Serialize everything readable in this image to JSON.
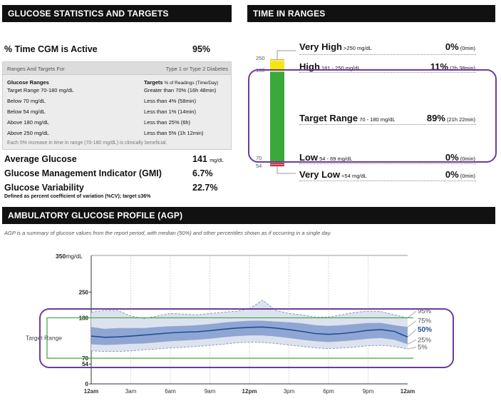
{
  "headers": {
    "stats": "GLUCOSE STATISTICS AND TARGETS",
    "tir": "TIME IN RANGES",
    "agp": "AMBULATORY GLUCOSE PROFILE (AGP)"
  },
  "stats": {
    "cgm_active_label": "% Time CGM is Active",
    "cgm_active_value": "95%",
    "targets_head_left": "Ranges And Targets For",
    "targets_head_right": "Type 1 or Type 2 Diabetes",
    "col_ranges_header": "Glucose Ranges",
    "col_targets_header_bold": "Targets",
    "col_targets_header_rest": " % of Readings (Time/Day)",
    "rows": [
      {
        "range": "Target Range 70-180 mg/dL",
        "target": "Greater than 70% (16h 48min)"
      },
      {
        "range": "Below 70 mg/dL",
        "target": "Less than 4% (58min)"
      },
      {
        "range": "Below 54 mg/dL",
        "target": "Less than 1% (14min)"
      },
      {
        "range": "Above 180 mg/dL",
        "target": "Less than 25% (6h)"
      },
      {
        "range": "Above 250 mg/dL",
        "target": "Less than 5% (1h 12min)"
      }
    ],
    "footnote": "Each 5% increase in time in range (70-180 mg/dL) is clinically beneficial.",
    "avg_glucose_label": "Average Glucose",
    "avg_glucose_value": "141",
    "avg_glucose_unit": "mg/dL",
    "gmi_label": "Glucose Management Indicator (GMI)",
    "gmi_value": "6.7%",
    "variability_label": "Glucose Variability",
    "variability_value": "22.7%",
    "variability_note": "Defined as percent coefficient of variation (%CV); target ≤36%"
  },
  "tir": {
    "axis_labels": [
      "250",
      "180",
      "70",
      "54"
    ],
    "rows": [
      {
        "label": "Very High",
        "range": ">250 mg/dL",
        "pct": "0%",
        "time": "(0min)"
      },
      {
        "label": "High",
        "range": "181 - 250 mg/dL",
        "pct": "11%",
        "time": "(2h 38min)"
      },
      {
        "label": "Target Range",
        "range": "70 - 180 mg/dL",
        "pct": "89%",
        "time": "(21h 22min)"
      },
      {
        "label": "Low",
        "range": "54 - 69 mg/dL",
        "pct": "0%",
        "time": "(0min)"
      },
      {
        "label": "Very Low",
        "range": "<54 mg/dL",
        "pct": "0%",
        "time": "(0min)"
      }
    ],
    "colors": {
      "very_high": "#f5a623",
      "high": "#f6e60a",
      "target": "#3aa83a",
      "low": "#d0021b",
      "very_low": "#8b0000"
    }
  },
  "agp": {
    "description": "AGP is a summary of glucose values from the report period, with median (50%) and other percentiles shown as if occurring in a single day.",
    "target_range_label": "Target Range",
    "y_unit_label": "mg/dL"
  },
  "chart_data": {
    "type": "area",
    "x_tick_labels": [
      "12am",
      "3am",
      "6am",
      "9am",
      "12pm",
      "3pm",
      "6pm",
      "9pm",
      "12am"
    ],
    "x": [
      0,
      1,
      2,
      3,
      4,
      5,
      6,
      7,
      8,
      9,
      10,
      11,
      12,
      13,
      14,
      15,
      16,
      17,
      18,
      19,
      20,
      21,
      22,
      23,
      24
    ],
    "xlim": [
      0,
      24
    ],
    "ylim": [
      0,
      350
    ],
    "y_ticks": [
      0,
      54,
      70,
      180,
      250,
      350
    ],
    "target_lines": [
      70,
      180
    ],
    "series": [
      {
        "name": "95%",
        "values": [
          195,
          200,
          200,
          185,
          178,
          185,
          192,
          190,
          188,
          192,
          195,
          198,
          205,
          228,
          200,
          192,
          188,
          182,
          182,
          188,
          195,
          198,
          197,
          188,
          180
        ]
      },
      {
        "name": "75%",
        "values": [
          155,
          150,
          152,
          152,
          152,
          155,
          157,
          158,
          160,
          163,
          167,
          170,
          172,
          172,
          170,
          168,
          165,
          160,
          158,
          160,
          163,
          166,
          166,
          160,
          155
        ]
      },
      {
        "name": "50%",
        "values": [
          130,
          127,
          128,
          130,
          133,
          136,
          139,
          141,
          142,
          145,
          149,
          152,
          154,
          155,
          152,
          148,
          143,
          137,
          135,
          137,
          141,
          146,
          148,
          143,
          128
        ]
      },
      {
        "name": "25%",
        "values": [
          108,
          106,
          107,
          109,
          110,
          113,
          116,
          118,
          120,
          123,
          127,
          130,
          132,
          132,
          129,
          125,
          120,
          116,
          114,
          116,
          119,
          123,
          125,
          120,
          108
        ]
      },
      {
        "name": "5%",
        "values": [
          90,
          88,
          88,
          90,
          93,
          95,
          98,
          100,
          102,
          105,
          108,
          112,
          114,
          113,
          110,
          106,
          102,
          98,
          96,
          98,
          100,
          104,
          105,
          102,
          95
        ]
      }
    ],
    "colors": {
      "outer_band": "#dde2ef",
      "inner_band": "#8fa6d3",
      "median": "#1f4e9a",
      "target_line": "#3aa83a"
    }
  }
}
